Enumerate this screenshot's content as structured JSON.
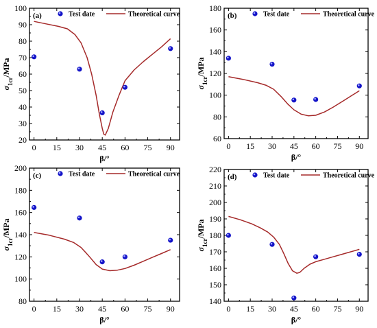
{
  "colors": {
    "point": "#1414c8",
    "point_highlight": "#a0a8ff",
    "curve": "#a52a2a",
    "axis": "#000000"
  },
  "chart_data": [
    {
      "type": "scatter",
      "panel_label": "(a)",
      "xlabel": "β/°",
      "ylabel_base": "σ",
      "ylabel_sub": "1cr",
      "ylabel_unit": "/MPa",
      "xlim": [
        -3,
        96
      ],
      "ylim": [
        20,
        100
      ],
      "xticks": [
        0,
        15,
        30,
        45,
        60,
        75,
        90
      ],
      "yticks": [
        20,
        30,
        40,
        50,
        60,
        70,
        80,
        90,
        100
      ],
      "grid": false,
      "legend_placement": "top",
      "series": [
        {
          "name": "Test date",
          "kind": "scatter",
          "x": [
            0,
            30,
            45,
            60,
            90
          ],
          "y": [
            70.5,
            63,
            36.5,
            52,
            75.5
          ]
        },
        {
          "name": "Theoretical curve",
          "kind": "line",
          "x": [
            0,
            8,
            16,
            22,
            27,
            31,
            35,
            38,
            41,
            43,
            45,
            46,
            47,
            49,
            52,
            56,
            60,
            66,
            72,
            78,
            84,
            90
          ],
          "y": [
            92,
            90.5,
            89,
            87.5,
            84,
            79,
            70,
            60,
            47,
            36,
            27,
            23.5,
            23,
            27,
            37,
            47,
            56,
            62.5,
            67.5,
            72,
            76.5,
            81.5
          ]
        }
      ]
    },
    {
      "type": "scatter",
      "panel_label": "(b)",
      "xlabel": "β/°",
      "ylabel_base": "σ",
      "ylabel_sub": "1cr",
      "ylabel_unit": "/MPa",
      "xlim": [
        -3,
        96
      ],
      "ylim": [
        60,
        180
      ],
      "xticks": [
        0,
        15,
        30,
        45,
        60,
        75,
        90
      ],
      "yticks": [
        60,
        80,
        100,
        120,
        140,
        160,
        180
      ],
      "grid": false,
      "legend_placement": "top",
      "series": [
        {
          "name": "Test date",
          "kind": "scatter",
          "x": [
            0,
            30,
            45,
            60,
            90
          ],
          "y": [
            134,
            128.5,
            95.5,
            96,
            108.5
          ]
        },
        {
          "name": "Theoretical curve",
          "kind": "line",
          "x": [
            0,
            10,
            20,
            26,
            31,
            36,
            41,
            45,
            50,
            55,
            60,
            66,
            72,
            78,
            84,
            90
          ],
          "y": [
            117,
            114.5,
            111.5,
            109,
            105.5,
            99,
            91.5,
            86.5,
            82.5,
            81,
            81.5,
            84.5,
            89,
            94,
            99,
            104
          ]
        }
      ]
    },
    {
      "type": "scatter",
      "panel_label": "(c)",
      "xlabel": "β/°",
      "ylabel_base": "σ",
      "ylabel_sub": "1cr",
      "ylabel_unit": "/MPa",
      "xlim": [
        -3,
        96
      ],
      "ylim": [
        80,
        200
      ],
      "xticks": [
        0,
        15,
        30,
        45,
        60,
        75,
        90
      ],
      "yticks": [
        80,
        100,
        120,
        140,
        160,
        180,
        200
      ],
      "grid": false,
      "legend_placement": "top",
      "series": [
        {
          "name": "Test date",
          "kind": "scatter",
          "x": [
            0,
            30,
            45,
            60,
            90
          ],
          "y": [
            164.5,
            155,
            115.5,
            120,
            135
          ]
        },
        {
          "name": "Theoretical curve",
          "kind": "line",
          "x": [
            0,
            10,
            20,
            26,
            31,
            36,
            41,
            45,
            50,
            55,
            60,
            66,
            72,
            78,
            84,
            90
          ],
          "y": [
            142,
            139.5,
            136,
            133,
            128.5,
            121,
            113,
            109,
            107.5,
            108,
            109.5,
            112.5,
            116,
            119.5,
            123,
            126.5
          ]
        }
      ]
    },
    {
      "type": "scatter",
      "panel_label": "(d)",
      "xlabel": "β/°",
      "ylabel_base": "σ",
      "ylabel_sub": "1cr",
      "ylabel_unit": "/MPa",
      "xlim": [
        -3,
        96
      ],
      "ylim": [
        140,
        220
      ],
      "xticks": [
        0,
        15,
        30,
        45,
        60,
        75,
        90
      ],
      "yticks": [
        140,
        150,
        160,
        170,
        180,
        190,
        200,
        210,
        220
      ],
      "grid": false,
      "legend_placement": "top",
      "series": [
        {
          "name": "Test date",
          "kind": "scatter",
          "x": [
            0,
            30,
            45,
            60,
            90
          ],
          "y": [
            180,
            174.5,
            142,
            167,
            168.5
          ]
        },
        {
          "name": "Theoretical curve",
          "kind": "line",
          "x": [
            0,
            8,
            16,
            22,
            27,
            31,
            35,
            38,
            41,
            44,
            47,
            49,
            52,
            56,
            60,
            66,
            72,
            78,
            84,
            90
          ],
          "y": [
            191.5,
            189.5,
            187,
            184.5,
            182,
            179,
            174.5,
            169,
            163,
            158.5,
            157,
            157.5,
            160,
            162.5,
            164,
            165.5,
            167,
            168.5,
            170,
            171.5
          ]
        }
      ]
    }
  ]
}
